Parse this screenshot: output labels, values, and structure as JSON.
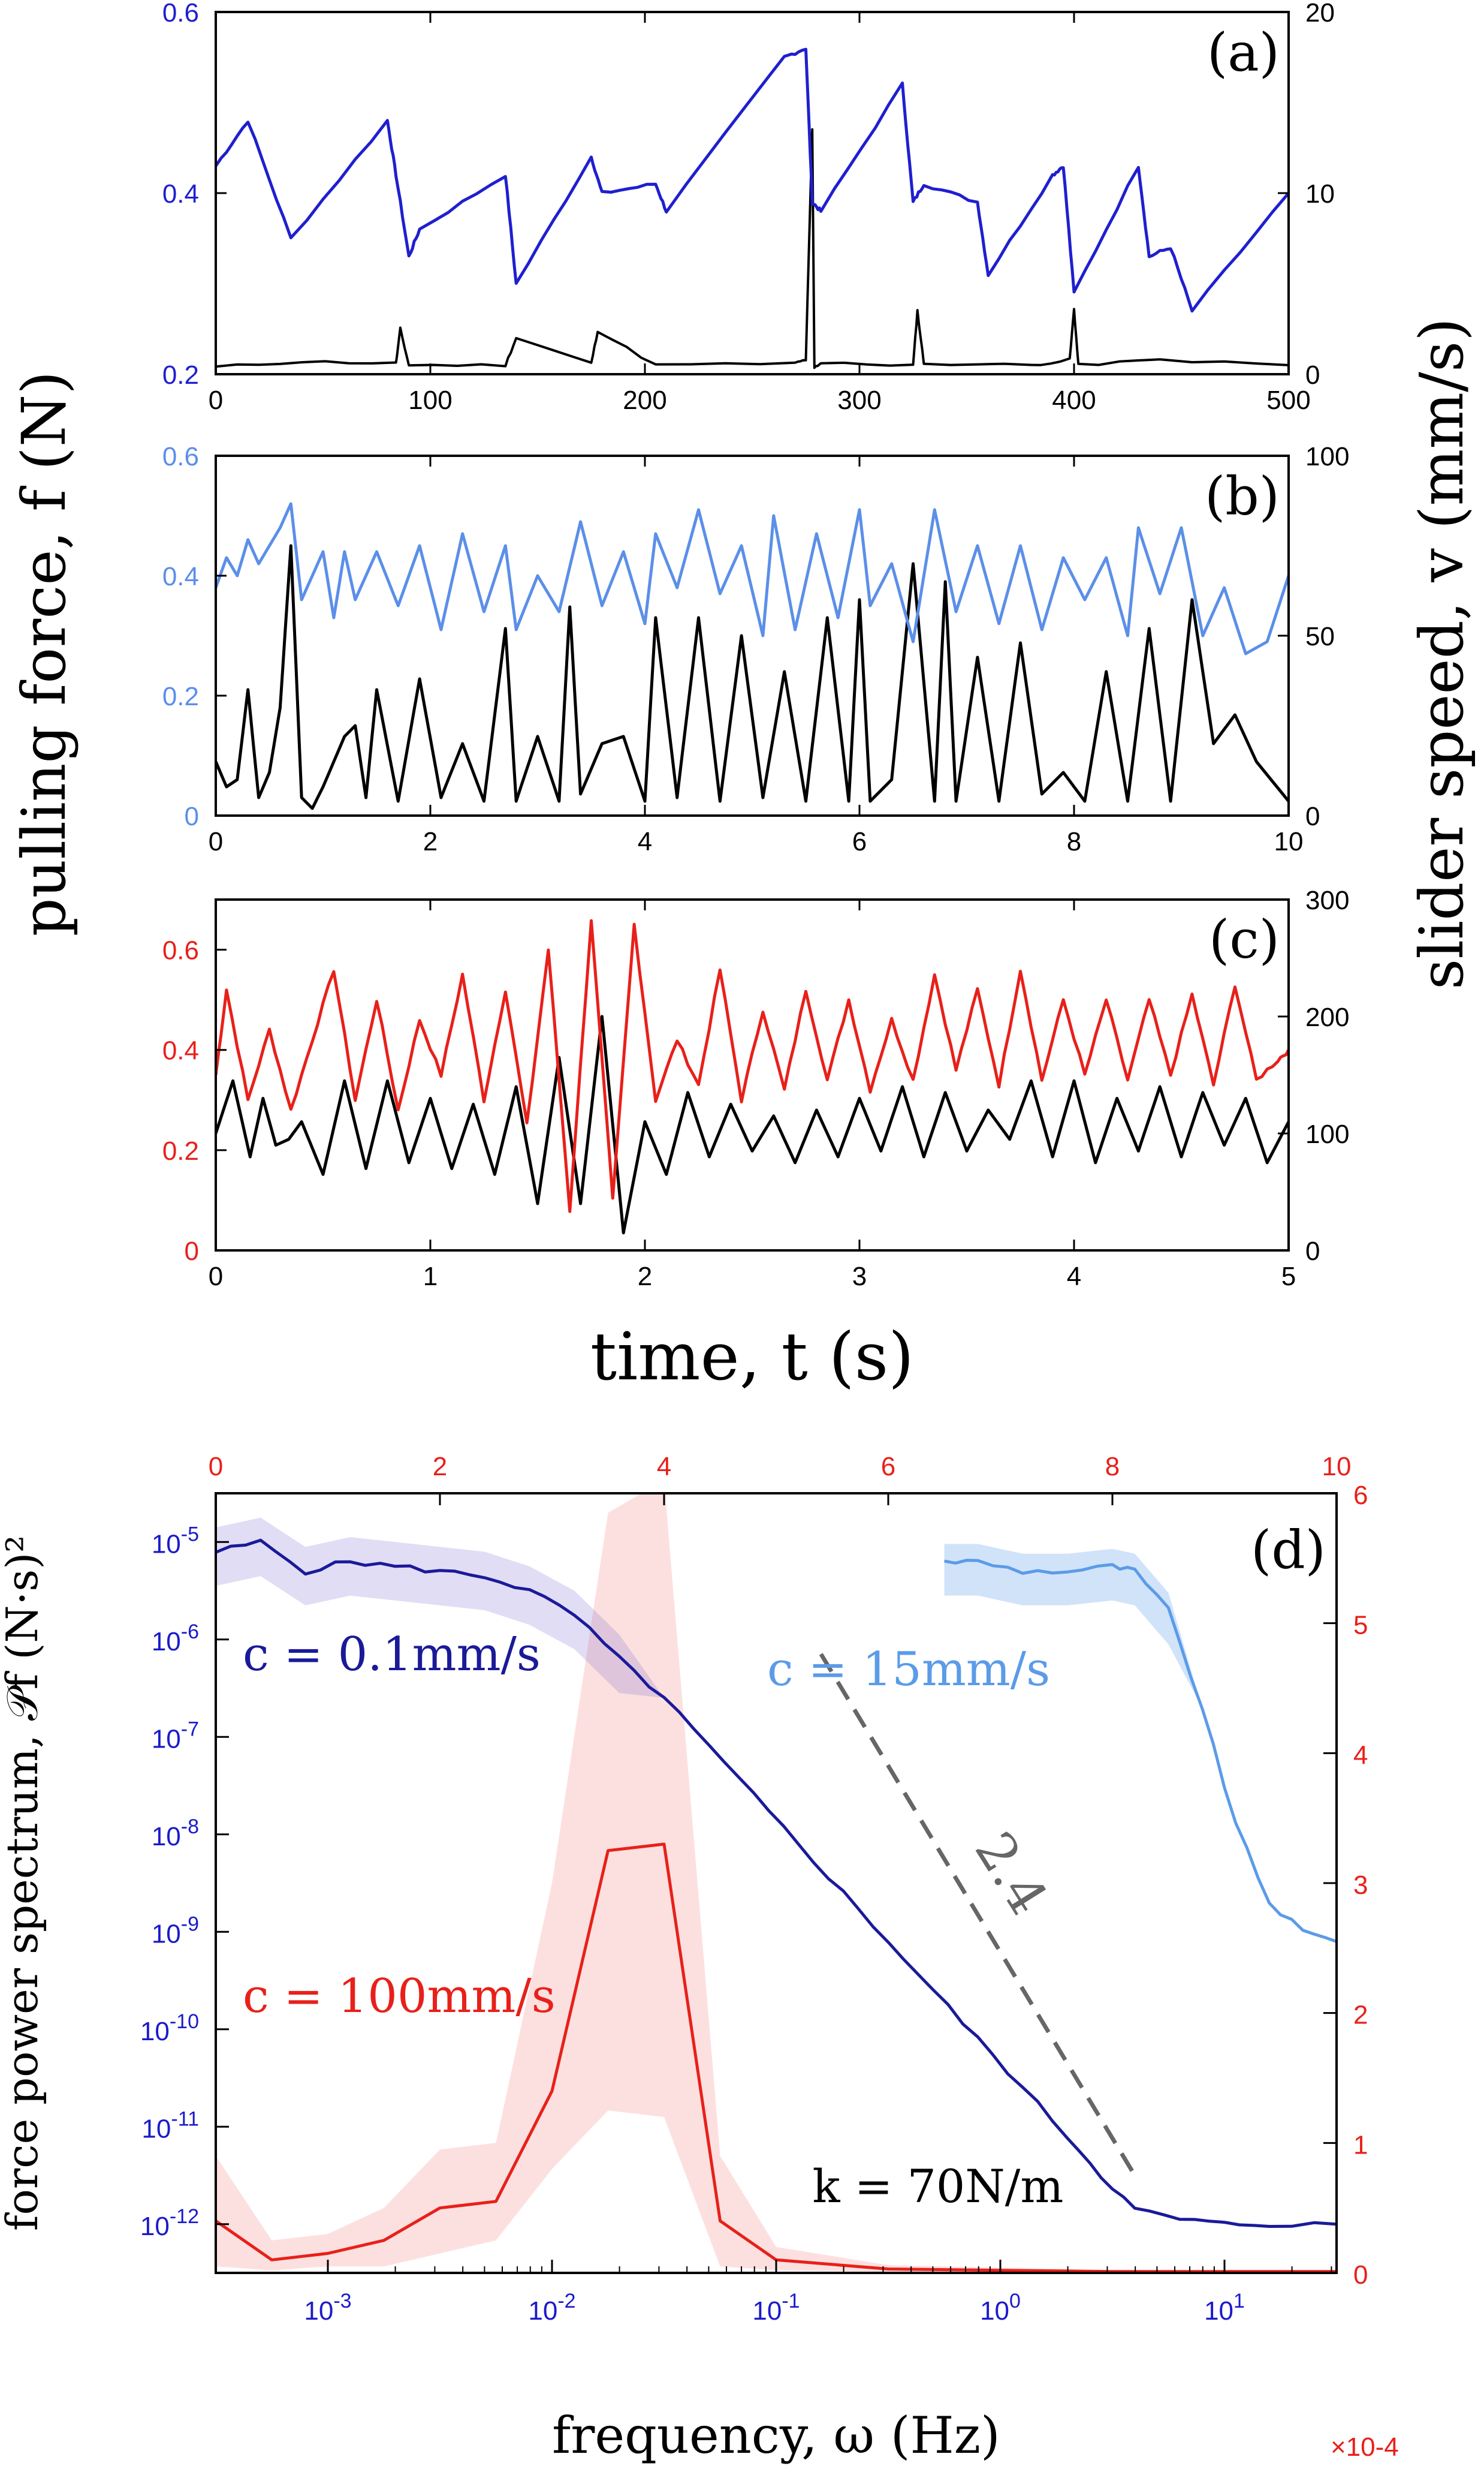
{
  "figure": {
    "shared_ylabel_left": "pulling force, f (N)",
    "shared_ylabel_right": "slider speed, v (mm/s)",
    "shared_xlabel": "time, t (s)"
  },
  "colors": {
    "a_force": "#1f1fcf",
    "b_force": "#5b8fe8",
    "c_force": "#e8201a",
    "speed": "#000000",
    "d_slow": "#1a1a99",
    "d_fast": "#5b9be8",
    "d_red": "#e8201a",
    "slope_line": "#666666"
  },
  "chart_data": [
    {
      "type": "line",
      "panel": "(a)",
      "xlim": [
        0,
        500
      ],
      "xticks": [
        "0",
        "100",
        "200",
        "300",
        "400",
        "500"
      ],
      "ylim_left": [
        0.2,
        0.6
      ],
      "yticks_left": [
        "0.2",
        "0.4",
        "0.6"
      ],
      "ylim_right": [
        0,
        20
      ],
      "yticks_right": [
        "0",
        "10",
        "20"
      ],
      "series": [
        {
          "name": "force",
          "axis": "left",
          "x": [
            0,
            15,
            35,
            80,
            84,
            90,
            95,
            135,
            140,
            175,
            180,
            205,
            210,
            265,
            275,
            278,
            282,
            320,
            325,
            330,
            355,
            360,
            390,
            395,
            400,
            430,
            435,
            445,
            455,
            500
          ],
          "y": [
            0.43,
            0.48,
            0.35,
            0.48,
            0.42,
            0.33,
            0.36,
            0.42,
            0.3,
            0.44,
            0.4,
            0.41,
            0.38,
            0.55,
            0.56,
            0.39,
            0.38,
            0.52,
            0.39,
            0.41,
            0.39,
            0.31,
            0.42,
            0.43,
            0.29,
            0.43,
            0.33,
            0.34,
            0.27,
            0.4
          ]
        },
        {
          "name": "speed",
          "axis": "right",
          "x": [
            0,
            40,
            84,
            86,
            90,
            135,
            140,
            175,
            178,
            205,
            270,
            275,
            278,
            279,
            282,
            325,
            327,
            330,
            380,
            398,
            400,
            402,
            440,
            500
          ],
          "y": [
            0.4,
            0.7,
            0.6,
            2.5,
            0.5,
            0.5,
            2.0,
            0.6,
            2.4,
            0.5,
            0.6,
            0.8,
            13.5,
            0.4,
            0.6,
            0.5,
            3.5,
            0.6,
            0.5,
            0.8,
            3.6,
            0.5,
            0.8,
            0.5
          ]
        }
      ]
    },
    {
      "type": "line",
      "panel": "(b)",
      "xlim": [
        0,
        10
      ],
      "xticks": [
        "0",
        "2",
        "4",
        "6",
        "8",
        "10"
      ],
      "ylim_left": [
        0,
        0.6
      ],
      "yticks_left": [
        "0",
        "0.2",
        "0.4",
        "0.6"
      ],
      "ylim_right": [
        0,
        100
      ],
      "yticks_right": [
        "0",
        "50",
        "100"
      ],
      "series": [
        {
          "name": "force",
          "axis": "left",
          "x": [
            0.0,
            0.1,
            0.2,
            0.3,
            0.4,
            0.5,
            0.6,
            0.7,
            0.8,
            0.9,
            1.0,
            1.1,
            1.2,
            1.3,
            1.5,
            1.7,
            1.9,
            2.1,
            2.3,
            2.5,
            2.7,
            2.8,
            3.0,
            3.2,
            3.4,
            3.6,
            3.8,
            4.0,
            4.1,
            4.3,
            4.5,
            4.7,
            4.9,
            5.1,
            5.2,
            5.4,
            5.6,
            5.8,
            6.0,
            6.1,
            6.3,
            6.5,
            6.7,
            6.9,
            7.1,
            7.3,
            7.5,
            7.7,
            7.9,
            8.1,
            8.3,
            8.5,
            8.6,
            8.8,
            9.0,
            9.2,
            9.4,
            9.6,
            9.8,
            10.0
          ],
          "y": [
            0.38,
            0.43,
            0.4,
            0.46,
            0.42,
            0.45,
            0.48,
            0.52,
            0.36,
            0.4,
            0.44,
            0.33,
            0.44,
            0.36,
            0.44,
            0.35,
            0.45,
            0.31,
            0.47,
            0.34,
            0.45,
            0.31,
            0.4,
            0.34,
            0.49,
            0.35,
            0.44,
            0.32,
            0.47,
            0.38,
            0.51,
            0.37,
            0.45,
            0.3,
            0.5,
            0.31,
            0.47,
            0.33,
            0.51,
            0.35,
            0.42,
            0.29,
            0.51,
            0.34,
            0.45,
            0.32,
            0.45,
            0.31,
            0.43,
            0.36,
            0.43,
            0.3,
            0.48,
            0.37,
            0.48,
            0.3,
            0.38,
            0.27,
            0.29,
            0.4
          ]
        },
        {
          "name": "speed",
          "axis": "right",
          "x": [
            0.0,
            0.1,
            0.2,
            0.3,
            0.4,
            0.5,
            0.6,
            0.7,
            0.8,
            0.9,
            1.0,
            1.2,
            1.3,
            1.4,
            1.5,
            1.7,
            1.9,
            2.1,
            2.3,
            2.5,
            2.7,
            2.8,
            3.0,
            3.2,
            3.3,
            3.4,
            3.6,
            3.8,
            4.0,
            4.1,
            4.3,
            4.5,
            4.7,
            4.9,
            5.1,
            5.3,
            5.5,
            5.7,
            5.9,
            6.0,
            6.1,
            6.3,
            6.5,
            6.7,
            6.8,
            6.9,
            7.1,
            7.3,
            7.5,
            7.7,
            7.9,
            8.1,
            8.3,
            8.5,
            8.7,
            8.9,
            9.1,
            9.3,
            9.5,
            9.7,
            10.0
          ],
          "y": [
            15,
            8,
            10,
            35,
            5,
            12,
            30,
            75,
            5,
            2,
            8,
            22,
            25,
            5,
            35,
            4,
            38,
            5,
            20,
            4,
            52,
            4,
            22,
            4,
            58,
            6,
            20,
            22,
            4,
            55,
            5,
            55,
            4,
            50,
            5,
            40,
            4,
            55,
            4,
            60,
            4,
            10,
            70,
            4,
            65,
            4,
            44,
            4,
            48,
            6,
            12,
            4,
            40,
            4,
            52,
            4,
            60,
            20,
            28,
            15,
            4
          ]
        }
      ]
    },
    {
      "type": "line",
      "panel": "(c)",
      "xlim": [
        0,
        5
      ],
      "xticks": [
        "0",
        "1",
        "2",
        "3",
        "4",
        "5"
      ],
      "ylim_left": [
        0,
        0.7
      ],
      "yticks_left": [
        "0",
        "0.2",
        "0.4",
        "0.6"
      ],
      "ylim_right": [
        0,
        300
      ],
      "yticks_right": [
        "0",
        "100",
        "200",
        "300"
      ],
      "series": [
        {
          "name": "force",
          "axis": "left",
          "x": [
            0.0,
            0.05,
            0.15,
            0.25,
            0.35,
            0.45,
            0.55,
            0.65,
            0.75,
            0.85,
            0.95,
            1.05,
            1.15,
            1.25,
            1.35,
            1.45,
            1.55,
            1.65,
            1.75,
            1.85,
            1.95,
            2.05,
            2.15,
            2.25,
            2.35,
            2.45,
            2.55,
            2.65,
            2.75,
            2.85,
            2.95,
            3.05,
            3.15,
            3.25,
            3.35,
            3.45,
            3.55,
            3.65,
            3.75,
            3.85,
            3.95,
            4.05,
            4.15,
            4.25,
            4.35,
            4.45,
            4.55,
            4.65,
            4.75,
            4.85,
            4.95,
            5.0
          ],
          "y": [
            0.35,
            0.52,
            0.3,
            0.44,
            0.28,
            0.42,
            0.56,
            0.3,
            0.5,
            0.28,
            0.46,
            0.35,
            0.55,
            0.3,
            0.52,
            0.25,
            0.6,
            0.08,
            0.66,
            0.1,
            0.65,
            0.3,
            0.42,
            0.33,
            0.56,
            0.3,
            0.48,
            0.32,
            0.52,
            0.34,
            0.5,
            0.32,
            0.46,
            0.34,
            0.55,
            0.36,
            0.52,
            0.33,
            0.56,
            0.34,
            0.5,
            0.35,
            0.5,
            0.34,
            0.5,
            0.35,
            0.51,
            0.33,
            0.53,
            0.34,
            0.38,
            0.4
          ]
        },
        {
          "name": "speed",
          "axis": "right",
          "x": [
            0.0,
            0.08,
            0.16,
            0.22,
            0.28,
            0.34,
            0.4,
            0.5,
            0.6,
            0.7,
            0.8,
            0.9,
            1.0,
            1.1,
            1.2,
            1.3,
            1.4,
            1.5,
            1.6,
            1.7,
            1.8,
            1.9,
            2.0,
            2.1,
            2.2,
            2.3,
            2.4,
            2.5,
            2.6,
            2.7,
            2.8,
            2.9,
            3.0,
            3.1,
            3.2,
            3.3,
            3.4,
            3.5,
            3.6,
            3.7,
            3.8,
            3.9,
            4.0,
            4.1,
            4.2,
            4.3,
            4.4,
            4.5,
            4.6,
            4.7,
            4.8,
            4.9,
            5.0
          ],
          "y": [
            100,
            145,
            80,
            130,
            90,
            95,
            110,
            65,
            145,
            70,
            145,
            75,
            130,
            70,
            125,
            65,
            140,
            40,
            165,
            40,
            200,
            15,
            110,
            65,
            135,
            80,
            125,
            85,
            115,
            75,
            120,
            80,
            130,
            85,
            140,
            80,
            135,
            85,
            120,
            95,
            145,
            80,
            145,
            75,
            130,
            85,
            140,
            80,
            135,
            90,
            130,
            75,
            110
          ]
        }
      ]
    },
    {
      "type": "line",
      "panel": "(d)",
      "xlabel": "frequency, ω (Hz)",
      "ylabel": "force power spectrum, 𝒫f (N·s)²",
      "x_log": true,
      "xlim_log10": [
        -3.5,
        1.5
      ],
      "xticks_bottom": [
        "10-3",
        "10-2",
        "10-1",
        "100",
        "101"
      ],
      "xlim_top": [
        0,
        10
      ],
      "xticks_top": [
        "0",
        "2",
        "4",
        "6",
        "8",
        "10"
      ],
      "top_axis_multiplier": "×10-4",
      "ylim_left_log10": [
        -12.5,
        -4.5
      ],
      "yticks_left": [
        "10-12",
        "10-11",
        "10-10",
        "10-9",
        "10-8",
        "10-7",
        "10-6",
        "10-5"
      ],
      "ylim_right": [
        0,
        6
      ],
      "yticks_right": [
        "0",
        "1",
        "2",
        "3",
        "4",
        "5",
        "6"
      ],
      "annotations": {
        "slope": "2.4",
        "k_label": "k = 70N/m"
      },
      "series": [
        {
          "name": "c = 0.1mm/s",
          "axis": "left_bottom",
          "x_log10": [
            -3.5,
            -3.3,
            -3.1,
            -2.9,
            -2.7,
            -2.5,
            -2.3,
            -2.1,
            -1.9,
            -1.7,
            -1.5,
            -1.3,
            -1.1,
            -0.9,
            -0.7,
            -0.5,
            -0.3,
            -0.1,
            0.1,
            0.3,
            0.45,
            0.6,
            0.8,
            1.0,
            1.2,
            1.5
          ],
          "y_log10": [
            -5.1,
            -5.0,
            -5.3,
            -5.2,
            -5.25,
            -5.3,
            -5.35,
            -5.5,
            -5.75,
            -6.2,
            -6.6,
            -7.1,
            -7.6,
            -8.1,
            -8.6,
            -9.1,
            -9.6,
            -10.1,
            -10.6,
            -11.1,
            -11.5,
            -11.85,
            -11.95,
            -12.0,
            -12.0,
            -12.0
          ]
        },
        {
          "name": "c = 15mm/s",
          "axis": "left_bottom",
          "x_log10": [
            -0.25,
            -0.1,
            0.1,
            0.3,
            0.5,
            0.6,
            0.75,
            0.9,
            1.05,
            1.2,
            1.35,
            1.5
          ],
          "y_log10": [
            -5.2,
            -5.2,
            -5.3,
            -5.3,
            -5.25,
            -5.3,
            -5.7,
            -6.7,
            -7.9,
            -8.7,
            -9.0,
            -9.1
          ]
        },
        {
          "name": "c = 100mm/s",
          "axis": "right_top",
          "x_top": [
            0.0,
            0.5,
            1.0,
            1.5,
            2.0,
            2.5,
            3.0,
            3.5,
            4.0,
            4.5,
            5.0,
            6.0,
            7.0,
            8.0,
            9.0,
            10.0
          ],
          "y": [
            0.4,
            0.1,
            0.15,
            0.25,
            0.5,
            0.55,
            1.4,
            3.25,
            3.3,
            0.4,
            0.1,
            0.03,
            0.02,
            0.01,
            0.01,
            0.01
          ]
        }
      ]
    }
  ]
}
